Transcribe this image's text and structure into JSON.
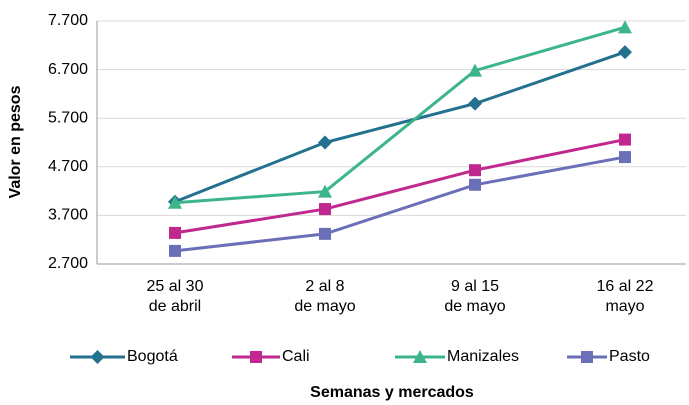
{
  "chart_data": {
    "type": "line",
    "x_axis_label": "Semanas y mercados",
    "y_axis_label": "Valor en pesos",
    "categories": [
      "25 al 30\nde abril",
      "2 al 8\nde mayo",
      "9 al 15\nde mayo",
      "16 al 22\nmayo"
    ],
    "series": [
      {
        "name": "Bogotá",
        "color": "#23708f",
        "marker": "diamond",
        "values": [
          3980,
          5200,
          6000,
          7060
        ]
      },
      {
        "name": "Cali",
        "color": "#c0288e",
        "marker": "square",
        "values": [
          3340,
          3830,
          4630,
          5260
        ]
      },
      {
        "name": "Manizales",
        "color": "#3cb58a",
        "marker": "triangle",
        "values": [
          3960,
          4190,
          6680,
          7570
        ]
      },
      {
        "name": "Pasto",
        "color": "#6a6fb8",
        "marker": "square",
        "values": [
          2970,
          3320,
          4330,
          4900
        ]
      }
    ],
    "ylim": [
      2700,
      7700
    ],
    "yticks": [
      {
        "value": 2700,
        "label": "2.700"
      },
      {
        "value": 3700,
        "label": "3.700"
      },
      {
        "value": 4700,
        "label": "4.700"
      },
      {
        "value": 5700,
        "label": "5.700"
      },
      {
        "value": 6700,
        "label": "6.700"
      },
      {
        "value": 7700,
        "label": "7.700"
      }
    ],
    "grid": true,
    "legend": "bottom"
  }
}
